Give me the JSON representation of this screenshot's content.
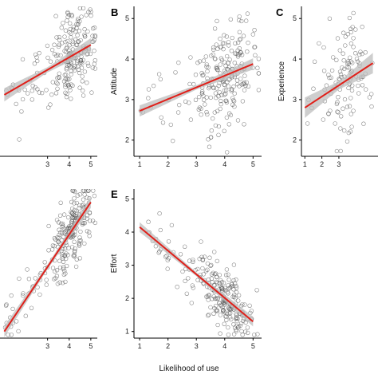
{
  "figure": {
    "xlabel": "Likelihood of use",
    "colors": {
      "points": "#555555",
      "fit": "#e0201a",
      "band": "#bdbdbd"
    }
  },
  "chart_data": [
    {
      "id": "A",
      "type": "scatter",
      "panel_letter": "",
      "ylabel": "",
      "xlim": [
        0.8,
        5.3
      ],
      "ylim": [
        1.4,
        5.3
      ],
      "x_ticks": [
        3,
        4,
        5
      ],
      "y_ticks": [],
      "fit": {
        "x0": 1,
        "y0": 3.0,
        "x1": 5,
        "y1": 4.3
      },
      "band": 0.15,
      "points": {
        "n": 220,
        "center_x": 4.2,
        "spread_x": 0.8,
        "noise": 0.55,
        "seed": 11
      }
    },
    {
      "id": "B",
      "type": "scatter",
      "panel_letter": "B",
      "ylabel": "Attitude",
      "xlim": [
        0.8,
        5.3
      ],
      "ylim": [
        1.6,
        5.3
      ],
      "x_ticks": [
        1,
        2,
        3,
        4,
        5
      ],
      "y_ticks": [
        2,
        3,
        4,
        5
      ],
      "fit": {
        "x0": 1,
        "y0": 2.72,
        "x1": 5,
        "y1": 3.88
      },
      "band": 0.12,
      "points": {
        "n": 230,
        "center_x": 4.0,
        "spread_x": 0.85,
        "noise": 0.55,
        "seed": 23
      }
    },
    {
      "id": "C",
      "type": "scatter",
      "panel_letter": "C",
      "ylabel": "Experience",
      "xlim": [
        0.8,
        5.3
      ],
      "ylim": [
        1.6,
        5.3
      ],
      "x_ticks": [
        1,
        2,
        3
      ],
      "y_ticks": [
        2,
        3,
        4,
        5
      ],
      "fit": {
        "x0": 1,
        "y0": 2.8,
        "x1": 5,
        "y1": 3.9
      },
      "band": 0.22,
      "points": {
        "n": 120,
        "center_x": 3.4,
        "spread_x": 1.1,
        "noise": 0.75,
        "seed": 37
      }
    },
    {
      "id": "D",
      "type": "scatter",
      "panel_letter": "",
      "ylabel": "",
      "xlim": [
        0.8,
        5.3
      ],
      "ylim": [
        0.8,
        5.3
      ],
      "x_ticks": [
        3,
        4,
        5
      ],
      "y_ticks": [],
      "fit": {
        "x0": 1,
        "y0": 1.0,
        "x1": 5,
        "y1": 4.9
      },
      "band": 0.15,
      "points": {
        "n": 240,
        "center_x": 4.1,
        "spread_x": 0.85,
        "noise": 0.55,
        "seed": 41
      }
    },
    {
      "id": "E",
      "type": "scatter",
      "panel_letter": "E",
      "ylabel": "Effort",
      "xlim": [
        0.8,
        5.3
      ],
      "ylim": [
        0.8,
        5.3
      ],
      "x_ticks": [
        1,
        2,
        3,
        4,
        5
      ],
      "y_ticks": [
        1,
        2,
        3,
        4,
        5
      ],
      "fit": {
        "x0": 1,
        "y0": 4.15,
        "x1": 5,
        "y1": 1.3
      },
      "band": 0.13,
      "points": {
        "n": 240,
        "center_x": 4.0,
        "spread_x": 0.8,
        "noise": 0.45,
        "seed": 53
      }
    }
  ]
}
